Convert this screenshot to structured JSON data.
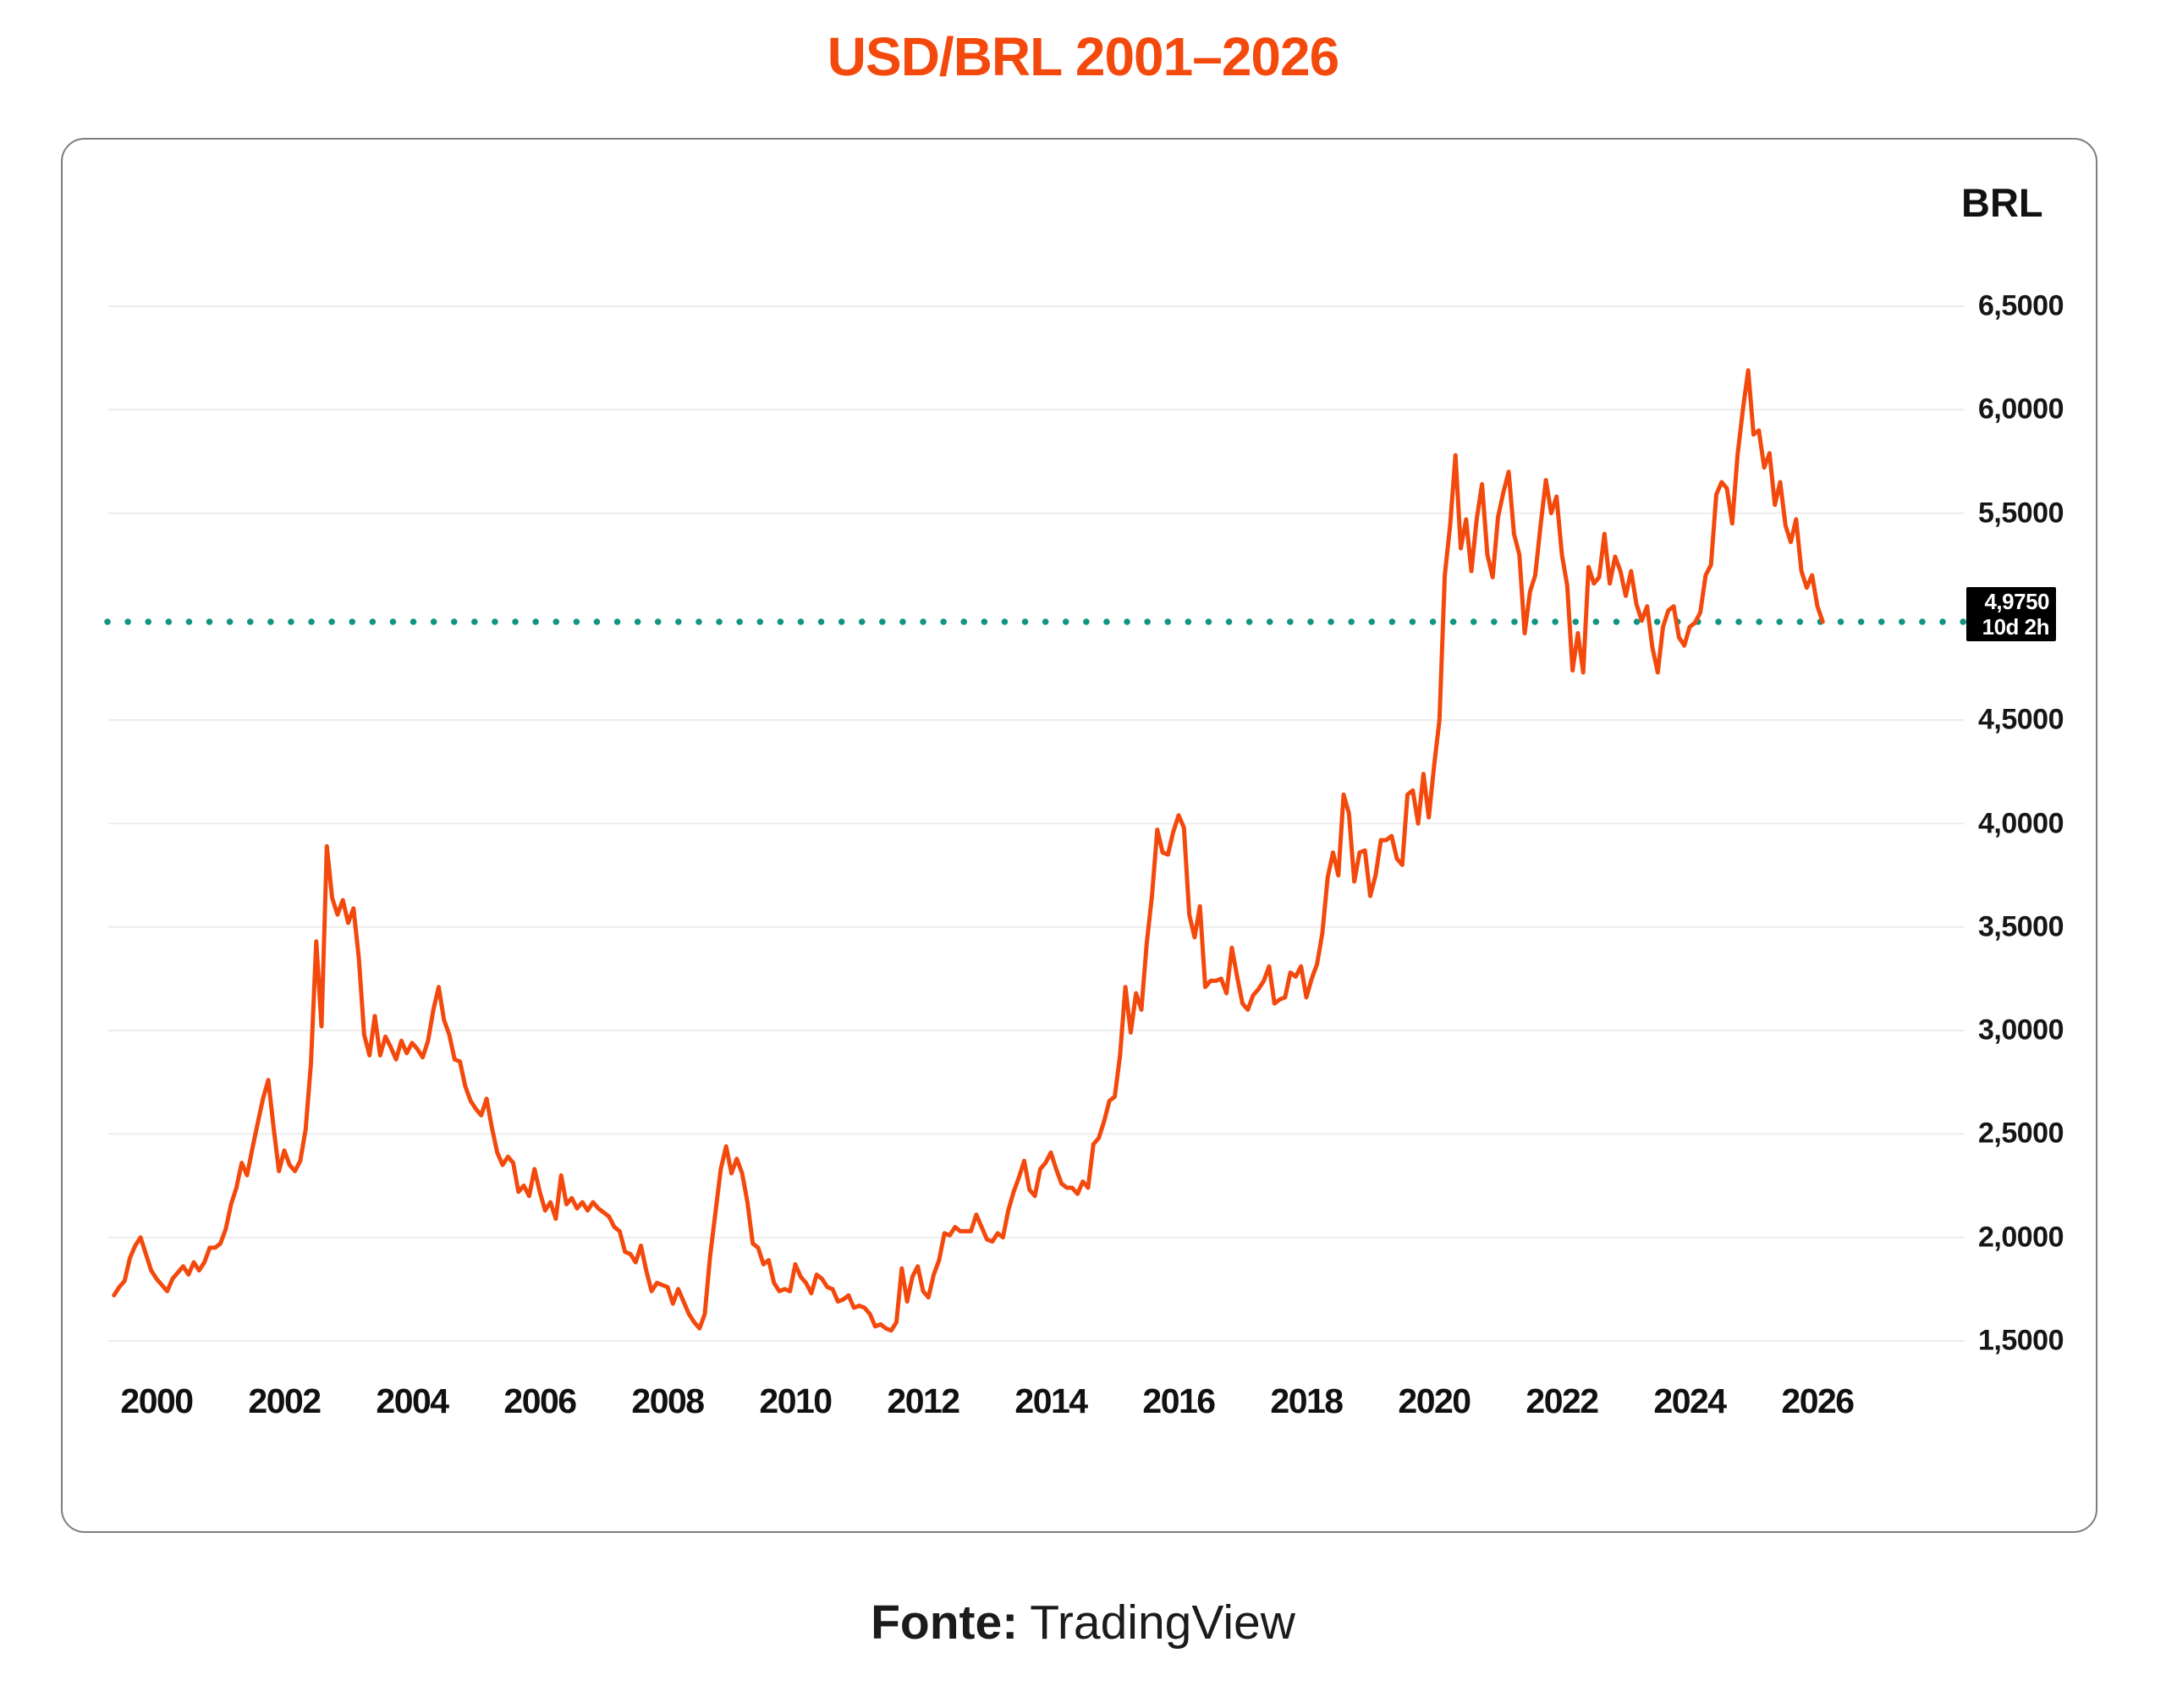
{
  "page": {
    "title": "USD/BRL 2001–2026",
    "footer": {
      "label": "Fonte:",
      "source": "TradingView"
    }
  },
  "chart": {
    "axis_title": "BRL",
    "price_tag": {
      "price": "4,9750",
      "countdown": "10d 2h"
    }
  },
  "chart_data": {
    "type": "line",
    "title": "USD/BRL 2001–2026",
    "xlabel": "",
    "ylabel": "BRL",
    "ylim": [
      1.3,
      6.9
    ],
    "grid": true,
    "legend": false,
    "x_ticks": [
      2000,
      2002,
      2004,
      2006,
      2008,
      2010,
      2012,
      2014,
      2016,
      2018,
      2020,
      2022,
      2024,
      2026
    ],
    "y_ticks": [
      {
        "value": 6.5,
        "label": "6,5000"
      },
      {
        "value": 6.0,
        "label": "6,0000"
      },
      {
        "value": 5.5,
        "label": "5,5000"
      },
      {
        "value": 4.5,
        "label": "4,5000"
      },
      {
        "value": 4.0,
        "label": "4,0000"
      },
      {
        "value": 3.5,
        "label": "3,5000"
      },
      {
        "value": 3.0,
        "label": "3,0000"
      },
      {
        "value": 2.5,
        "label": "2,5000"
      },
      {
        "value": 2.0,
        "label": "2,0000"
      },
      {
        "value": 1.5,
        "label": "1,5000"
      }
    ],
    "reference_line": {
      "value": 4.975,
      "label": "4,9750",
      "countdown": "10d 2h",
      "style": "dotted",
      "color": "#109581"
    },
    "series": [
      {
        "name": "USD/BRL",
        "interval": "monthly",
        "start": "1999-05",
        "values": [
          1.72,
          1.76,
          1.79,
          1.9,
          1.96,
          2.0,
          1.92,
          1.84,
          1.8,
          1.77,
          1.74,
          1.8,
          1.83,
          1.86,
          1.82,
          1.88,
          1.84,
          1.88,
          1.95,
          1.95,
          1.97,
          2.04,
          2.16,
          2.24,
          2.36,
          2.3,
          2.43,
          2.55,
          2.67,
          2.76,
          2.53,
          2.32,
          2.42,
          2.35,
          2.32,
          2.37,
          2.52,
          2.84,
          3.43,
          3.02,
          3.89,
          3.64,
          3.56,
          3.63,
          3.52,
          3.59,
          3.35,
          2.98,
          2.88,
          3.07,
          2.88,
          2.97,
          2.92,
          2.86,
          2.95,
          2.89,
          2.94,
          2.91,
          2.87,
          2.95,
          3.1,
          3.21,
          3.05,
          2.98,
          2.86,
          2.85,
          2.73,
          2.66,
          2.62,
          2.59,
          2.67,
          2.53,
          2.41,
          2.35,
          2.39,
          2.36,
          2.22,
          2.25,
          2.2,
          2.33,
          2.22,
          2.13,
          2.17,
          2.09,
          2.3,
          2.16,
          2.19,
          2.14,
          2.17,
          2.13,
          2.17,
          2.14,
          2.12,
          2.1,
          2.05,
          2.03,
          1.93,
          1.92,
          1.88,
          1.96,
          1.84,
          1.74,
          1.78,
          1.77,
          1.76,
          1.68,
          1.75,
          1.69,
          1.63,
          1.59,
          1.56,
          1.63,
          1.91,
          2.12,
          2.33,
          2.44,
          2.31,
          2.38,
          2.31,
          2.17,
          1.97,
          1.95,
          1.87,
          1.89,
          1.78,
          1.74,
          1.75,
          1.74,
          1.87,
          1.81,
          1.78,
          1.73,
          1.82,
          1.8,
          1.76,
          1.75,
          1.69,
          1.7,
          1.72,
          1.66,
          1.67,
          1.66,
          1.63,
          1.57,
          1.58,
          1.56,
          1.55,
          1.59,
          1.85,
          1.69,
          1.81,
          1.86,
          1.74,
          1.71,
          1.82,
          1.89,
          2.02,
          2.01,
          2.05,
          2.03,
          2.03,
          2.03,
          2.11,
          2.05,
          1.99,
          1.98,
          2.02,
          2.0,
          2.13,
          2.22,
          2.29,
          2.37,
          2.23,
          2.2,
          2.33,
          2.36,
          2.41,
          2.33,
          2.26,
          2.24,
          2.24,
          2.21,
          2.27,
          2.24,
          2.45,
          2.48,
          2.56,
          2.66,
          2.68,
          2.88,
          3.21,
          2.99,
          3.18,
          3.1,
          3.42,
          3.65,
          3.97,
          3.86,
          3.85,
          3.96,
          4.04,
          3.98,
          3.56,
          3.45,
          3.6,
          3.21,
          3.24,
          3.24,
          3.25,
          3.18,
          3.4,
          3.26,
          3.13,
          3.1,
          3.17,
          3.2,
          3.24,
          3.31,
          3.13,
          3.15,
          3.16,
          3.28,
          3.26,
          3.31,
          3.16,
          3.25,
          3.32,
          3.47,
          3.74,
          3.86,
          3.75,
          4.14,
          4.05,
          3.72,
          3.86,
          3.87,
          3.65,
          3.75,
          3.92,
          3.92,
          3.94,
          3.83,
          3.8,
          4.14,
          4.16,
          4.0,
          4.24,
          4.03,
          4.28,
          4.5,
          5.2,
          5.44,
          5.78,
          5.33,
          5.47,
          5.22,
          5.47,
          5.64,
          5.3,
          5.19,
          5.48,
          5.6,
          5.7,
          5.4,
          5.3,
          4.92,
          5.12,
          5.2,
          5.44,
          5.66,
          5.5,
          5.58,
          5.3,
          5.15,
          4.74,
          4.92,
          4.73,
          5.24,
          5.16,
          5.19,
          5.4,
          5.16,
          5.29,
          5.22,
          5.1,
          5.22,
          5.06,
          4.98,
          5.05,
          4.85,
          4.73,
          4.95,
          5.03,
          5.05,
          4.9,
          4.86,
          4.95,
          4.97,
          5.02,
          5.2,
          5.25,
          5.59,
          5.65,
          5.62,
          5.45,
          5.78,
          6.0,
          6.19,
          5.88,
          5.9,
          5.72,
          5.79,
          5.54,
          5.65,
          5.44,
          5.36,
          5.47,
          5.22,
          5.14,
          5.2,
          5.05,
          4.975
        ]
      }
    ],
    "colors": {
      "line": "#F3490D",
      "title": "#F4490D",
      "grid": "#ECECEC",
      "reference": "#109581",
      "tag_bg": "#000000",
      "tag_text": "#FFFFFF"
    }
  }
}
